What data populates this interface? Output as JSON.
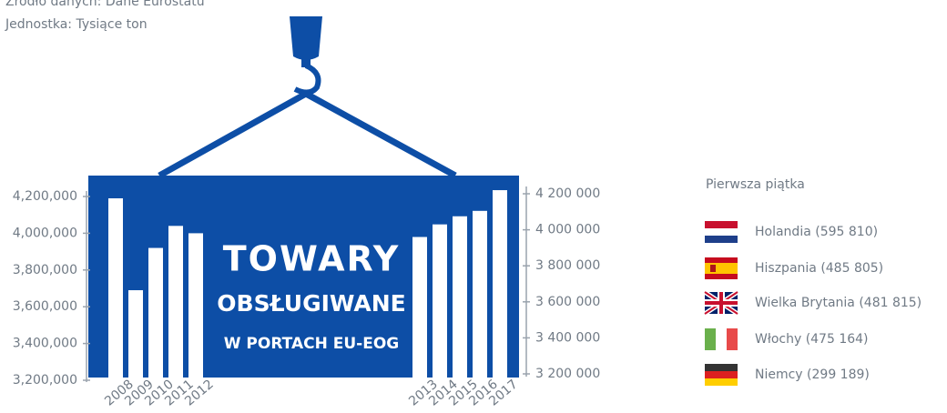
{
  "info": {
    "source": "Źródło danych: Dane Eurostatu",
    "unit": "Jednostka: Tysiące ton",
    "title": [
      "TOWARY",
      "OBSŁUGIWANE",
      "W PORTACH EU-EOG"
    ],
    "legend_title": "Pierwsza piątka",
    "legend": [
      "Holandia (595 810)",
      "Hiszpania (485 805)",
      "Wielka Brytania (481 815)",
      "Włochy (475 164)",
      "Niemcy (299 189)"
    ]
  },
  "chart_data": [
    {
      "type": "bar",
      "categories": [
        "2008",
        "2009",
        "2010",
        "2011",
        "2012"
      ],
      "values": [
        4190000,
        3690000,
        3920000,
        4040000,
        4000000
      ],
      "color": "#ffffff",
      "ylim": [
        3200000,
        4250000
      ],
      "yticks": [
        {
          "value": 3200000,
          "label": "3,200,000"
        },
        {
          "value": 3400000,
          "label": "3,400,000"
        },
        {
          "value": 3600000,
          "label": "3,600,000"
        },
        {
          "value": 3800000,
          "label": "3,800,000"
        },
        {
          "value": 4000000,
          "label": "4,000,000"
        },
        {
          "value": 4200000,
          "label": "4,200,000"
        }
      ]
    },
    {
      "type": "bar",
      "categories": [
        "2013",
        "2014",
        "2015",
        "2016",
        "2017"
      ],
      "values": [
        3960000,
        4030000,
        4075000,
        4105000,
        4220000
      ],
      "color": "#ffffff",
      "ylim": [
        3200000,
        4250000
      ],
      "yticks": [
        {
          "value": 3200000,
          "label": "3 200 000"
        },
        {
          "value": 3400000,
          "label": "3 400 000"
        },
        {
          "value": 3600000,
          "label": "3 600 000"
        },
        {
          "value": 3800000,
          "label": "3 800 000"
        },
        {
          "value": 4000000,
          "label": "4 000 000"
        },
        {
          "value": 4200000,
          "label": "4 200 000"
        }
      ]
    }
  ]
}
